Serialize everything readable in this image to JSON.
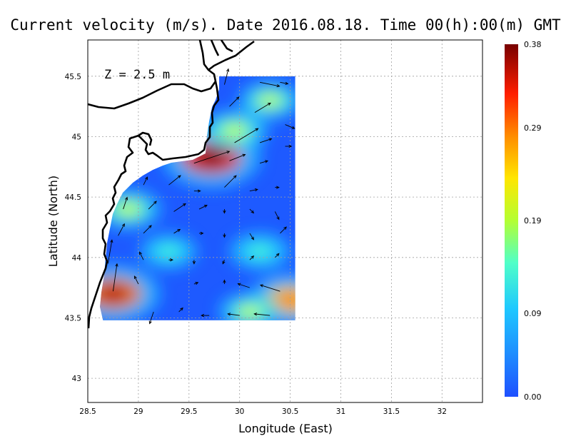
{
  "title": "Current velocity (m/s). Date 2016.08.18. Time 00(h):00(m) GMT",
  "depth_label": "Z = 2.5 m",
  "chart_data": {
    "type": "heatmap",
    "title": "Current velocity (m/s). Date 2016.08.18. Time 00(h):00(m) GMT",
    "xlabel": "Longitude (East)",
    "ylabel": "Latitude (North)",
    "xlim": [
      28.5,
      32.4
    ],
    "ylim": [
      42.8,
      45.8
    ],
    "x_ticks": [
      "28.5",
      "29",
      "29.5",
      "30",
      "30.5",
      "31",
      "31.5",
      "32"
    ],
    "y_ticks": [
      "43",
      "43.5",
      "44",
      "44.5",
      "45",
      "45.5"
    ],
    "grid": true,
    "data_extent": {
      "lon": [
        28.65,
        30.55
      ],
      "lat": [
        43.48,
        45.5
      ]
    },
    "colorbar": {
      "min": 0.0,
      "max": 0.38,
      "tick_labels": [
        "0.38",
        "0.29",
        "0.19",
        "0.09",
        "0.00"
      ],
      "tick_values": [
        0.38,
        0.29,
        0.19,
        0.09,
        0.0
      ],
      "colors": [
        "#1e50ff",
        "#1e8cff",
        "#1ed2ff",
        "#50ffc8",
        "#d2ff1e",
        "#ffd200",
        "#ff7800",
        "#ff1e00",
        "#b40000",
        "#820000"
      ]
    },
    "speed_hotspots": [
      {
        "lon": 29.72,
        "lat": 44.83,
        "speed": 0.37
      },
      {
        "lon": 28.75,
        "lat": 43.7,
        "speed": 0.34
      },
      {
        "lon": 30.5,
        "lat": 43.65,
        "speed": 0.27
      },
      {
        "lon": 29.95,
        "lat": 45.05,
        "speed": 0.18
      },
      {
        "lon": 28.9,
        "lat": 44.4,
        "speed": 0.17
      },
      {
        "lon": 30.3,
        "lat": 45.3,
        "speed": 0.15
      },
      {
        "lon": 30.2,
        "lat": 44.05,
        "speed": 0.14
      },
      {
        "lon": 29.3,
        "lat": 44.05,
        "speed": 0.12
      },
      {
        "lon": 30.1,
        "lat": 43.55,
        "speed": 0.15
      }
    ],
    "vectors": [
      {
        "lon": 29.85,
        "lat": 45.43,
        "u": 0.05,
        "v": 0.2
      },
      {
        "lon": 30.2,
        "lat": 45.45,
        "u": 0.25,
        "v": -0.05
      },
      {
        "lon": 30.4,
        "lat": 45.45,
        "u": 0.1,
        "v": -0.02
      },
      {
        "lon": 29.9,
        "lat": 45.25,
        "u": 0.12,
        "v": 0.12
      },
      {
        "lon": 30.15,
        "lat": 45.2,
        "u": 0.2,
        "v": 0.12
      },
      {
        "lon": 30.45,
        "lat": 45.1,
        "u": 0.12,
        "v": -0.05
      },
      {
        "lon": 29.95,
        "lat": 44.95,
        "u": 0.3,
        "v": 0.18
      },
      {
        "lon": 30.2,
        "lat": 44.95,
        "u": 0.15,
        "v": 0.05
      },
      {
        "lon": 30.45,
        "lat": 44.92,
        "u": 0.08,
        "v": 0.0
      },
      {
        "lon": 29.55,
        "lat": 44.78,
        "u": 0.45,
        "v": 0.15
      },
      {
        "lon": 29.9,
        "lat": 44.8,
        "u": 0.2,
        "v": 0.08
      },
      {
        "lon": 30.2,
        "lat": 44.78,
        "u": 0.1,
        "v": 0.03
      },
      {
        "lon": 29.05,
        "lat": 44.6,
        "u": 0.05,
        "v": 0.1
      },
      {
        "lon": 29.3,
        "lat": 44.6,
        "u": 0.15,
        "v": 0.12
      },
      {
        "lon": 29.55,
        "lat": 44.55,
        "u": 0.08,
        "v": 0.0
      },
      {
        "lon": 29.85,
        "lat": 44.58,
        "u": 0.15,
        "v": 0.15
      },
      {
        "lon": 30.1,
        "lat": 44.55,
        "u": 0.1,
        "v": 0.02
      },
      {
        "lon": 30.35,
        "lat": 44.58,
        "u": 0.05,
        "v": 0.0
      },
      {
        "lon": 28.85,
        "lat": 44.4,
        "u": 0.05,
        "v": 0.15
      },
      {
        "lon": 29.1,
        "lat": 44.4,
        "u": 0.1,
        "v": 0.1
      },
      {
        "lon": 29.35,
        "lat": 44.38,
        "u": 0.15,
        "v": 0.1
      },
      {
        "lon": 29.6,
        "lat": 44.4,
        "u": 0.1,
        "v": 0.05
      },
      {
        "lon": 29.85,
        "lat": 44.4,
        "u": 0.0,
        "v": -0.05
      },
      {
        "lon": 30.1,
        "lat": 44.4,
        "u": 0.05,
        "v": -0.05
      },
      {
        "lon": 30.35,
        "lat": 44.38,
        "u": 0.05,
        "v": -0.1
      },
      {
        "lon": 28.8,
        "lat": 44.18,
        "u": 0.08,
        "v": 0.15
      },
      {
        "lon": 29.05,
        "lat": 44.2,
        "u": 0.1,
        "v": 0.1
      },
      {
        "lon": 29.35,
        "lat": 44.2,
        "u": 0.08,
        "v": 0.05
      },
      {
        "lon": 29.6,
        "lat": 44.2,
        "u": 0.05,
        "v": 0.0
      },
      {
        "lon": 29.85,
        "lat": 44.2,
        "u": 0.0,
        "v": -0.05
      },
      {
        "lon": 30.1,
        "lat": 44.2,
        "u": 0.05,
        "v": -0.08
      },
      {
        "lon": 30.4,
        "lat": 44.2,
        "u": 0.08,
        "v": 0.08
      },
      {
        "lon": 28.7,
        "lat": 43.95,
        "u": 0.05,
        "v": 0.3
      },
      {
        "lon": 29.05,
        "lat": 43.98,
        "u": -0.05,
        "v": 0.1
      },
      {
        "lon": 29.3,
        "lat": 43.98,
        "u": 0.05,
        "v": 0.0
      },
      {
        "lon": 29.55,
        "lat": 43.98,
        "u": 0.0,
        "v": -0.05
      },
      {
        "lon": 29.85,
        "lat": 43.98,
        "u": -0.02,
        "v": -0.05
      },
      {
        "lon": 30.1,
        "lat": 43.98,
        "u": 0.05,
        "v": 0.05
      },
      {
        "lon": 30.35,
        "lat": 44.0,
        "u": 0.05,
        "v": 0.05
      },
      {
        "lon": 28.75,
        "lat": 43.72,
        "u": 0.05,
        "v": 0.35
      },
      {
        "lon": 29.0,
        "lat": 43.78,
        "u": -0.05,
        "v": 0.1
      },
      {
        "lon": 29.3,
        "lat": 43.78,
        "u": 0.0,
        "v": 0.0
      },
      {
        "lon": 29.55,
        "lat": 43.78,
        "u": 0.05,
        "v": 0.02
      },
      {
        "lon": 29.85,
        "lat": 43.78,
        "u": 0.0,
        "v": 0.05
      },
      {
        "lon": 30.1,
        "lat": 43.75,
        "u": -0.15,
        "v": 0.05
      },
      {
        "lon": 30.4,
        "lat": 43.72,
        "u": -0.25,
        "v": 0.08
      },
      {
        "lon": 29.15,
        "lat": 43.55,
        "u": -0.05,
        "v": -0.15
      },
      {
        "lon": 29.4,
        "lat": 43.55,
        "u": 0.05,
        "v": 0.05
      },
      {
        "lon": 29.7,
        "lat": 43.52,
        "u": -0.1,
        "v": 0.0
      },
      {
        "lon": 30.0,
        "lat": 43.52,
        "u": -0.15,
        "v": 0.02
      },
      {
        "lon": 30.3,
        "lat": 43.52,
        "u": -0.2,
        "v": 0.02
      }
    ]
  }
}
